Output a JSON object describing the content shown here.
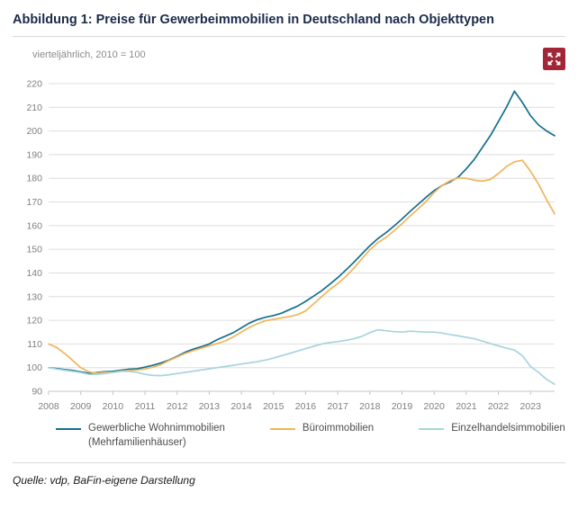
{
  "header": {
    "title": "Abbildung 1: Preise für Gewerbeimmobilien in Deutschland nach Objekttypen"
  },
  "icons": {
    "expand_icon": "arrows-out-expand"
  },
  "colors": {
    "accent_red": "#a32638",
    "title_blue": "#1b2a4a",
    "gridline": "#dedede",
    "axis": "#c4c4c4",
    "tick_text": "#7f7f7f"
  },
  "chart_data": {
    "type": "line",
    "title": "Abbildung 1: Preise für Gewerbeimmobilien in Deutschland nach Objekttypen",
    "subtitle": "vierteljährlich, 2010 = 100",
    "x_start": 2008,
    "x_step": 0.25,
    "x_tick_labels": [
      "2008",
      "2009",
      "2010",
      "2011",
      "2012",
      "2013",
      "2014",
      "2015",
      "2016",
      "2017",
      "2018",
      "2019",
      "2020",
      "2021",
      "2022",
      "2023"
    ],
    "ylim": [
      90,
      220
    ],
    "y_tick_step": 10,
    "grid": "horizontal",
    "legend_position": "bottom",
    "series": [
      {
        "name": "Gewerbliche Wohnimmobilien (Mehrfamilienhäuser)",
        "color": "#156f8e",
        "values": [
          100,
          99.6,
          99.2,
          98.8,
          98.2,
          97.6,
          97.9,
          98.3,
          98.4,
          98.9,
          99.3,
          99.5,
          100.2,
          101,
          102,
          103.2,
          104.8,
          106.5,
          107.8,
          108.8,
          110,
          111.8,
          113.3,
          114.8,
          116.8,
          118.8,
          120.3,
          121.3,
          122,
          123,
          124.5,
          126,
          128,
          130.2,
          132.5,
          135.2,
          138,
          141.2,
          144.5,
          148,
          151.5,
          154.5,
          157,
          159.8,
          162.8,
          166,
          169,
          172,
          174.8,
          177,
          178.5,
          180.5,
          184,
          188,
          193,
          198,
          204,
          210,
          216.8,
          212,
          206.5,
          202.5,
          200,
          198
        ]
      },
      {
        "name": "Büroimmobilien",
        "color": "#f1b45a",
        "values": [
          110,
          108.5,
          106,
          103,
          100,
          98.2,
          97.6,
          98,
          98,
          98.5,
          98.8,
          99,
          99.4,
          100.2,
          101.3,
          103,
          104.5,
          106,
          107.2,
          108.2,
          109.2,
          110.2,
          111.3,
          113,
          115,
          117,
          118.5,
          119.8,
          120.4,
          121,
          121.6,
          122.4,
          124,
          127,
          130,
          133,
          135.5,
          138.5,
          142,
          146,
          149.8,
          152.8,
          155,
          157.8,
          160.8,
          164,
          167,
          170.2,
          174,
          177,
          179,
          180.2,
          180,
          179.2,
          178.8,
          179.5,
          182,
          185,
          187,
          187.6,
          183,
          177.5,
          171,
          165
        ]
      },
      {
        "name": "Einzelhandelsimmobilien",
        "color": "#a6d4de",
        "values": [
          100,
          99.4,
          98.9,
          98.4,
          97.9,
          97.2,
          97.1,
          97.5,
          98,
          98.4,
          98.4,
          98,
          97.2,
          96.7,
          96.6,
          97,
          97.5,
          98,
          98.5,
          99,
          99.5,
          100,
          100.5,
          101,
          101.5,
          102,
          102.5,
          103.2,
          104,
          105,
          106,
          107,
          108,
          109,
          110,
          110.6,
          111,
          111.5,
          112.2,
          113.2,
          114.8,
          116,
          115.6,
          115.2,
          115,
          115.4,
          115.2,
          115,
          115,
          114.6,
          114,
          113.4,
          112.8,
          112.2,
          111.2,
          110.2,
          109.2,
          108.2,
          107.4,
          105,
          100.5,
          98,
          95,
          93
        ]
      }
    ]
  },
  "legend": {
    "items": [
      {
        "line1": "Gewerbliche Wohnimmobilien",
        "line2": "(Mehrfamilienhäuser)"
      },
      {
        "line1": "Büroimmobilien"
      },
      {
        "line1": "Einzelhandelsimmobilien"
      }
    ]
  },
  "footer": {
    "source": "Quelle: vdp, BaFin-eigene Darstellung"
  }
}
